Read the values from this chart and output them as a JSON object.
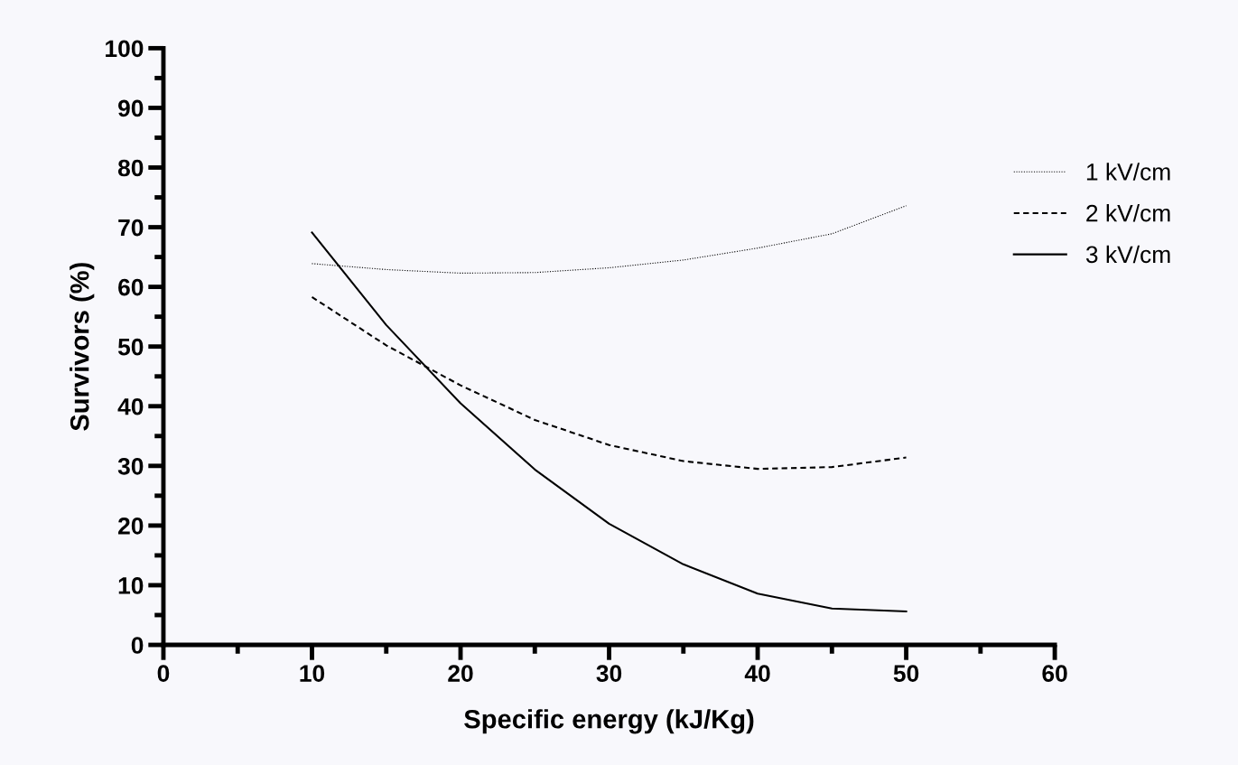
{
  "chart_data": {
    "type": "line",
    "xlabel": "Specific energy (kJ/Kg)",
    "ylabel": "Survivors (%)",
    "x": [
      10,
      15,
      20,
      25,
      30,
      35,
      40,
      45,
      50
    ],
    "series": [
      {
        "name": "1 kV/cm",
        "color": "#000000",
        "line_style": "dotted",
        "values": [
          63.9,
          62.9,
          62.3,
          62.4,
          63.2,
          64.5,
          66.5,
          68.9,
          73.6
        ]
      },
      {
        "name": "2 kV/cm",
        "color": "#000000",
        "line_style": "dashed",
        "values": [
          58.3,
          50.2,
          43.5,
          37.7,
          33.5,
          30.8,
          29.5,
          29.8,
          31.4
        ]
      },
      {
        "name": "3 kV/cm",
        "color": "#000000",
        "line_style": "solid",
        "values": [
          69.1,
          53.6,
          40.5,
          29.4,
          20.3,
          13.5,
          8.6,
          6.1,
          5.6
        ]
      }
    ],
    "xlim": [
      0,
      60
    ],
    "ylim": [
      0,
      100
    ],
    "xticks": [
      0,
      {
        "value": 5,
        "label": null
      },
      10,
      {
        "value": 15,
        "label": null
      },
      20,
      {
        "value": 25,
        "label": null
      },
      30,
      {
        "value": 35,
        "label": null
      },
      40,
      {
        "value": 45,
        "label": null
      },
      50,
      {
        "value": 55,
        "label": null
      },
      60
    ],
    "yticks": [
      0,
      {
        "value": 5,
        "label": null
      },
      10,
      {
        "value": 15,
        "label": null
      },
      20,
      {
        "value": 25,
        "label": null
      },
      30,
      {
        "value": 35,
        "label": null
      },
      40,
      {
        "value": 45,
        "label": null
      },
      50,
      {
        "value": 55,
        "label": null
      },
      60,
      {
        "value": 65,
        "label": null
      },
      70,
      {
        "value": 75,
        "label": null
      },
      80,
      {
        "value": 85,
        "label": null
      },
      90,
      {
        "value": 95,
        "label": null
      },
      100
    ],
    "grid": false,
    "legend": "right",
    "marker": "none"
  }
}
